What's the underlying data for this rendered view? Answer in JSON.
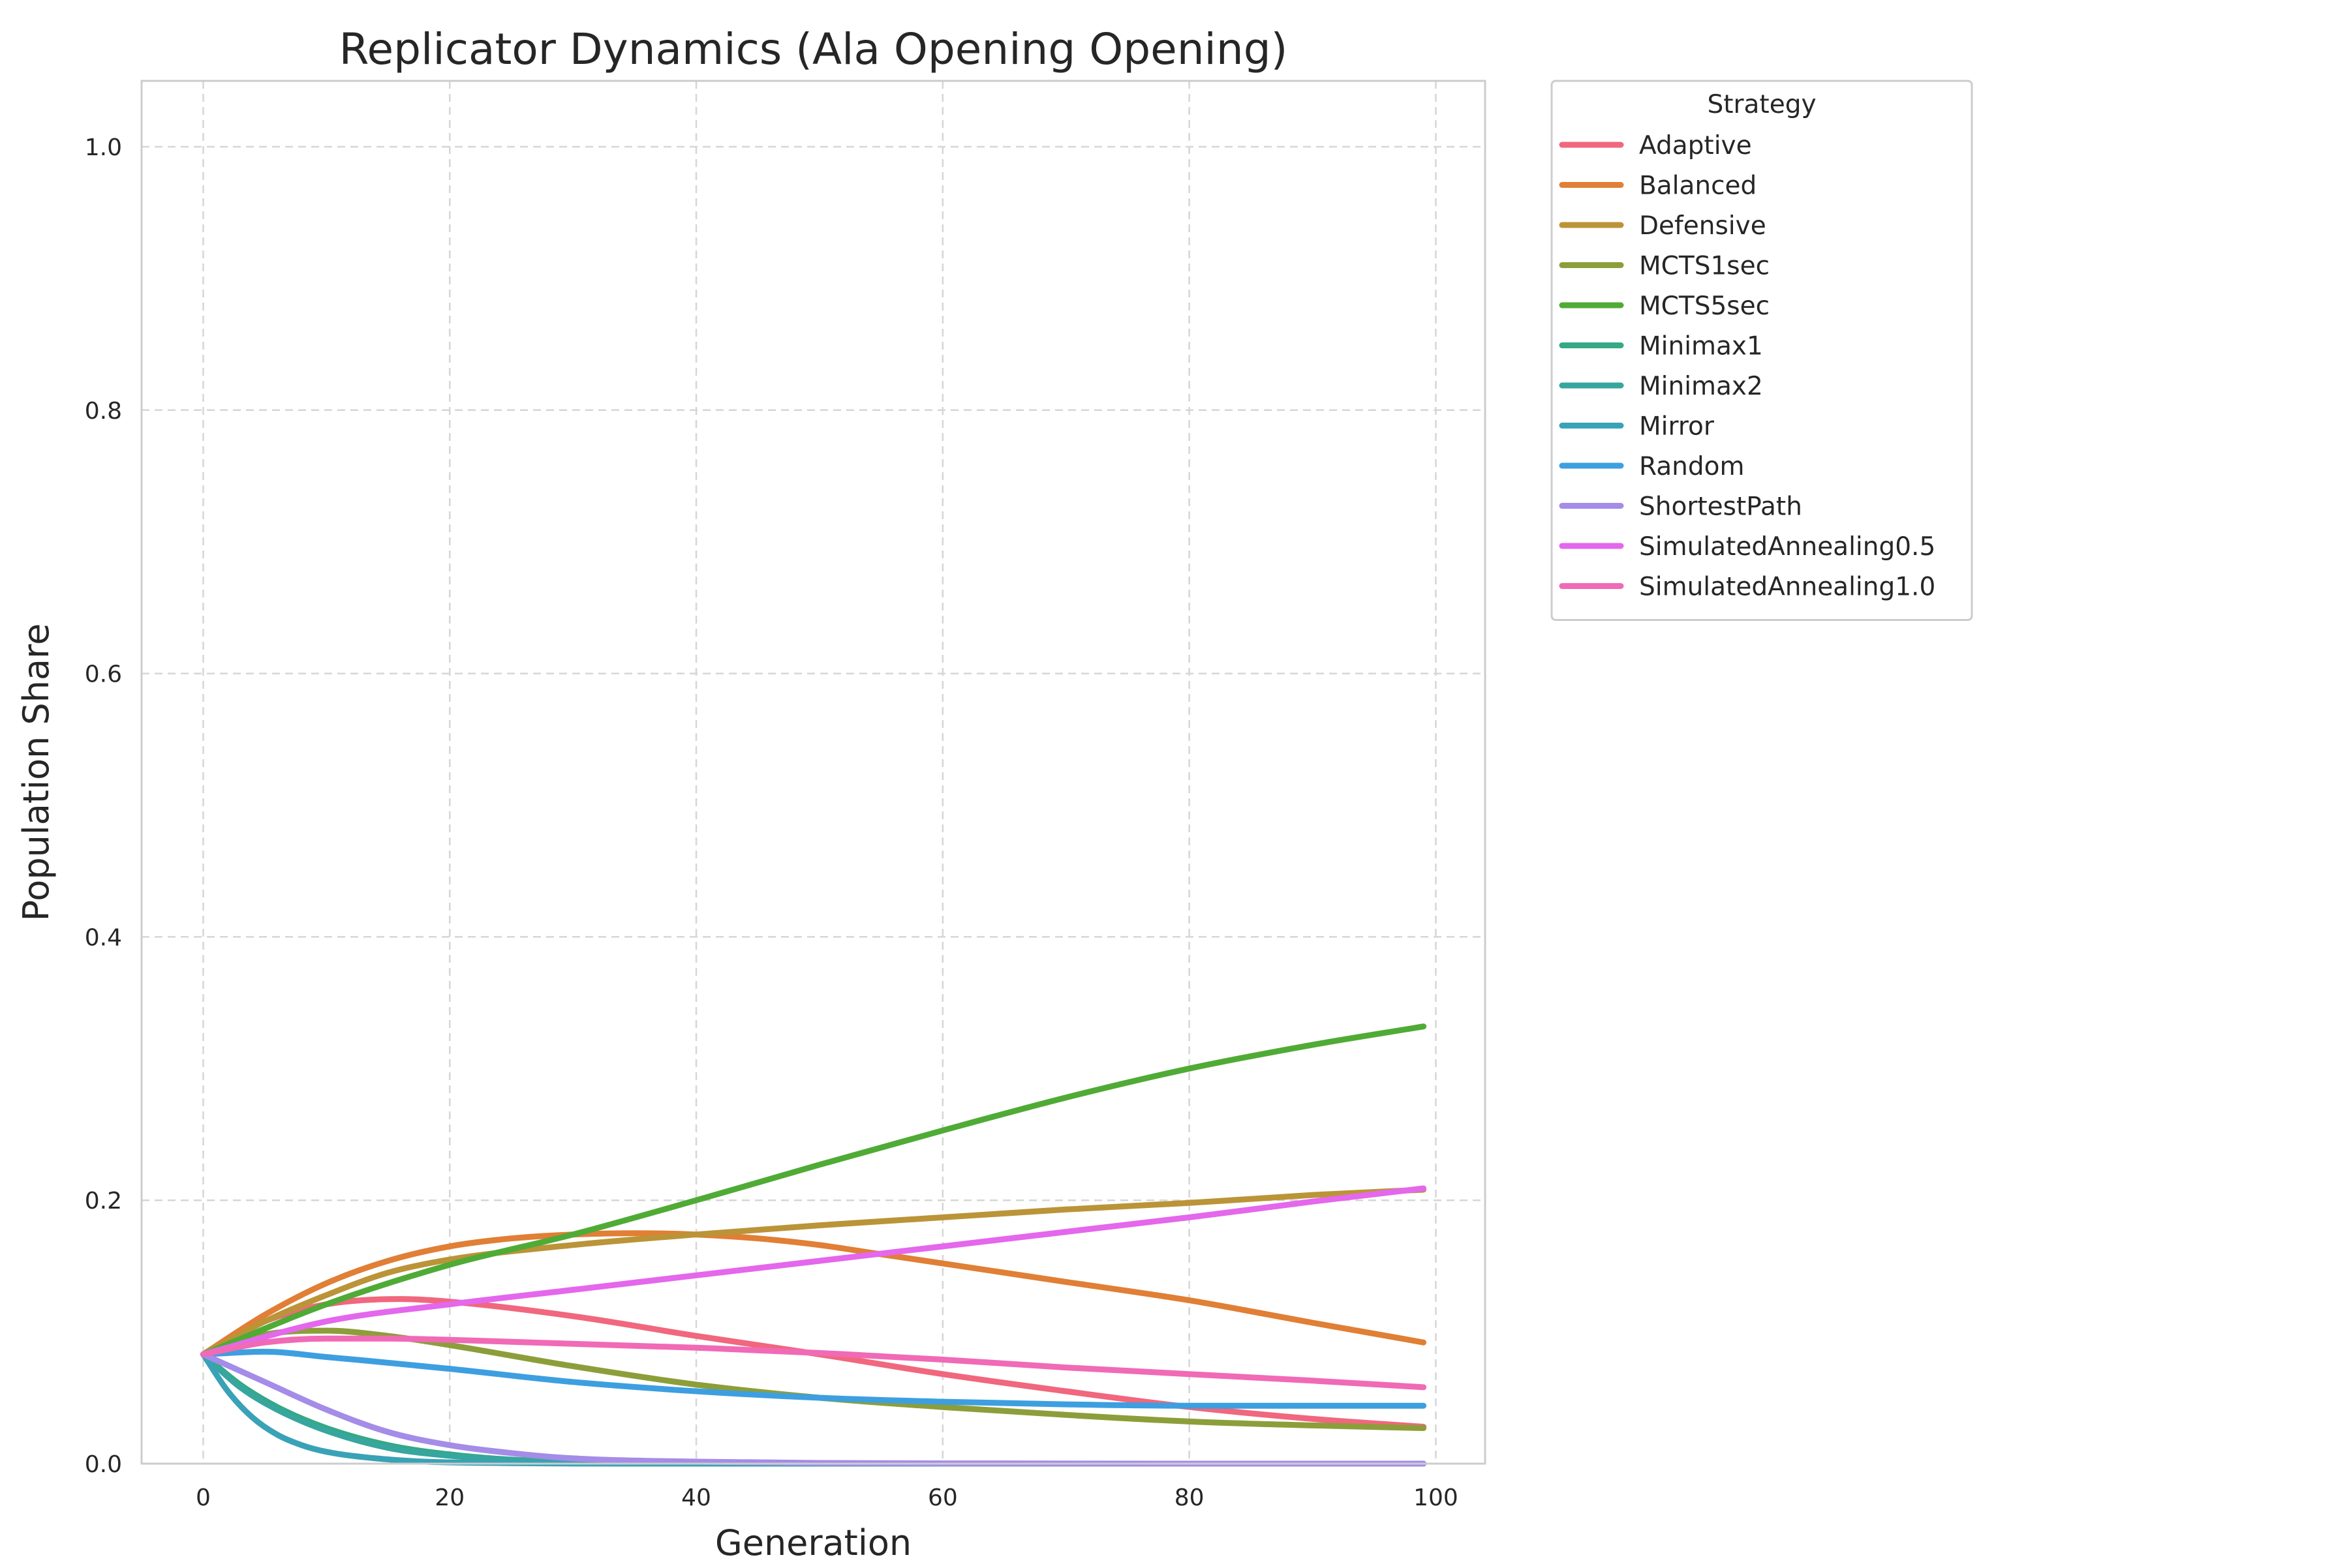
{
  "chart_data": {
    "type": "line",
    "title": "Replicator Dynamics (Ala Opening Opening)",
    "xlabel": "Generation",
    "ylabel": "Population Share",
    "xlim": [
      -5,
      104
    ],
    "ylim": [
      0,
      1.05
    ],
    "xticks": [
      0,
      20,
      40,
      60,
      80,
      100
    ],
    "xtick_labels": [
      "0",
      "20",
      "40",
      "60",
      "80",
      "100"
    ],
    "yticks": [
      0.0,
      0.2,
      0.4,
      0.6,
      0.8,
      1.0
    ],
    "ytick_labels": [
      "0.0",
      "0.2",
      "0.4",
      "0.6",
      "0.8",
      "1.0"
    ],
    "grid": true,
    "legend": {
      "title": "Strategy",
      "placement": "outside-upper-right"
    },
    "series": [
      {
        "name": "Adaptive",
        "color": "#f0677e",
        "x": [
          0,
          5,
          10,
          16,
          20,
          30,
          40,
          50,
          60,
          70,
          80,
          90,
          99
        ],
        "y": [
          0.083,
          0.108,
          0.121,
          0.125,
          0.123,
          0.112,
          0.097,
          0.083,
          0.068,
          0.055,
          0.043,
          0.034,
          0.028
        ]
      },
      {
        "name": "Balanced",
        "color": "#e07f35",
        "x": [
          0,
          5,
          10,
          15,
          20,
          25,
          30,
          35,
          40,
          45,
          50,
          55,
          60,
          70,
          80,
          90,
          99
        ],
        "y": [
          0.083,
          0.113,
          0.137,
          0.154,
          0.165,
          0.171,
          0.174,
          0.175,
          0.174,
          0.171,
          0.166,
          0.159,
          0.152,
          0.138,
          0.124,
          0.107,
          0.092
        ]
      },
      {
        "name": "Defensive",
        "color": "#bb9438",
        "x": [
          0,
          5,
          10,
          15,
          20,
          30,
          40,
          50,
          60,
          70,
          80,
          90,
          99
        ],
        "y": [
          0.083,
          0.108,
          0.128,
          0.145,
          0.155,
          0.166,
          0.174,
          0.181,
          0.187,
          0.193,
          0.198,
          0.204,
          0.208
        ]
      },
      {
        "name": "MCTS1sec",
        "color": "#8c9e3a",
        "x": [
          0,
          5,
          10,
          15,
          20,
          30,
          40,
          50,
          60,
          70,
          80,
          90,
          99
        ],
        "y": [
          0.083,
          0.098,
          0.101,
          0.097,
          0.09,
          0.074,
          0.06,
          0.05,
          0.043,
          0.037,
          0.032,
          0.029,
          0.027
        ]
      },
      {
        "name": "MCTS5sec",
        "color": "#4fab35",
        "x": [
          0,
          10,
          20,
          30,
          40,
          50,
          60,
          70,
          80,
          90,
          99
        ],
        "y": [
          0.083,
          0.121,
          0.151,
          0.174,
          0.2,
          0.227,
          0.253,
          0.278,
          0.3,
          0.318,
          0.332
        ]
      },
      {
        "name": "Minimax1",
        "color": "#35a885",
        "x": [
          0,
          3,
          6,
          10,
          15,
          20,
          25,
          30,
          40,
          60,
          80,
          99
        ],
        "y": [
          0.083,
          0.06,
          0.043,
          0.027,
          0.014,
          0.007,
          0.003,
          0.0015,
          0.0004,
          0.0,
          0.0,
          0.0
        ]
      },
      {
        "name": "Minimax2",
        "color": "#37a69e",
        "x": [
          0,
          3,
          6,
          10,
          15,
          20,
          25,
          30,
          40,
          60,
          80,
          99
        ],
        "y": [
          0.083,
          0.058,
          0.041,
          0.025,
          0.012,
          0.006,
          0.003,
          0.0012,
          0.0003,
          0.0,
          0.0,
          0.0
        ]
      },
      {
        "name": "Mirror",
        "color": "#39a2b6",
        "x": [
          0,
          2,
          4,
          6,
          8,
          10,
          14,
          18,
          25,
          35,
          50,
          99
        ],
        "y": [
          0.083,
          0.055,
          0.035,
          0.022,
          0.014,
          0.009,
          0.004,
          0.0015,
          0.0004,
          0.0,
          0.0,
          0.0
        ]
      },
      {
        "name": "Random",
        "color": "#3d9fe0",
        "x": [
          0,
          5,
          10,
          20,
          30,
          40,
          50,
          60,
          70,
          80,
          90,
          99
        ],
        "y": [
          0.083,
          0.085,
          0.081,
          0.072,
          0.062,
          0.055,
          0.05,
          0.047,
          0.045,
          0.044,
          0.044,
          0.044
        ]
      },
      {
        "name": "ShortestPath",
        "color": "#a48ce8",
        "x": [
          0,
          5,
          10,
          15,
          20,
          25,
          30,
          40,
          50,
          60,
          80,
          99
        ],
        "y": [
          0.083,
          0.062,
          0.041,
          0.024,
          0.014,
          0.008,
          0.004,
          0.0015,
          0.0005,
          0.0002,
          0.0,
          0.0
        ]
      },
      {
        "name": "SimulatedAnnealing0.5",
        "color": "#e467ec",
        "x": [
          0,
          10,
          20,
          30,
          40,
          50,
          60,
          70,
          80,
          90,
          99
        ],
        "y": [
          0.083,
          0.108,
          0.121,
          0.132,
          0.143,
          0.154,
          0.165,
          0.176,
          0.187,
          0.199,
          0.209
        ]
      },
      {
        "name": "SimulatedAnnealing1.0",
        "color": "#f06ab6",
        "x": [
          0,
          5,
          10,
          15,
          20,
          30,
          40,
          50,
          60,
          70,
          80,
          90,
          99
        ],
        "y": [
          0.083,
          0.092,
          0.095,
          0.095,
          0.094,
          0.091,
          0.088,
          0.084,
          0.079,
          0.073,
          0.068,
          0.063,
          0.058
        ]
      }
    ]
  }
}
